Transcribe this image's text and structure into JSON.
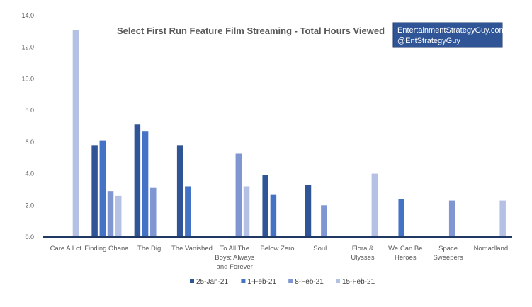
{
  "chart_data": {
    "type": "bar",
    "title": "Select First Run Feature Film Streaming - Total Hours Viewed",
    "xlabel": "",
    "ylabel": "",
    "ylim": [
      0,
      14
    ],
    "yticks": [
      "0.0",
      "2.0",
      "4.0",
      "6.0",
      "8.0",
      "10.0",
      "12.0",
      "14.0"
    ],
    "grid": false,
    "legend_position": "bottom",
    "categories": [
      [
        "I Care A Lot"
      ],
      [
        "Finding Ohana"
      ],
      [
        "The Dig"
      ],
      [
        "The Vanished"
      ],
      [
        "To All The",
        "Boys: Always",
        "and Forever"
      ],
      [
        "Below Zero"
      ],
      [
        "Soul"
      ],
      [
        "Flora &",
        "Ulysses"
      ],
      [
        "We Can Be",
        "Heroes"
      ],
      [
        "Space",
        "Sweepers"
      ],
      [
        "Nomadland"
      ]
    ],
    "series": [
      {
        "name": "25-Jan-21",
        "color": "#2f5597",
        "values": [
          null,
          5.8,
          7.1,
          5.8,
          null,
          3.9,
          3.3,
          null,
          null,
          null,
          null
        ]
      },
      {
        "name": "1-Feb-21",
        "color": "#4472c4",
        "values": [
          null,
          6.1,
          6.7,
          3.2,
          null,
          2.7,
          null,
          null,
          2.4,
          null,
          null
        ]
      },
      {
        "name": "8-Feb-21",
        "color": "#7f96d2",
        "values": [
          null,
          2.9,
          3.1,
          null,
          5.3,
          null,
          2.0,
          null,
          null,
          2.3,
          null
        ]
      },
      {
        "name": "15-Feb-21",
        "color": "#b4c0e4",
        "values": [
          13.1,
          2.6,
          null,
          null,
          3.2,
          null,
          null,
          4.0,
          null,
          null,
          2.3
        ]
      }
    ]
  },
  "watermark": {
    "line1": "EntertainmentStrategyGuy.com",
    "line2": "@EntStrategyGuy",
    "background": "#2f5597",
    "border": "#1f3a68"
  },
  "colors": {
    "axis": "#1f3864",
    "text": "#595959"
  }
}
